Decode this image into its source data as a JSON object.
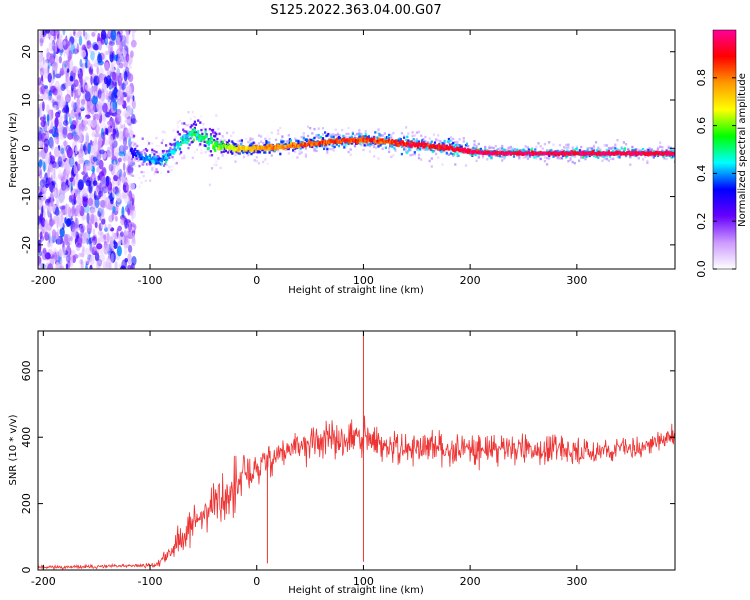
{
  "figure": {
    "title": "S125.2022.363.04.00.G07"
  },
  "chart_data": [
    {
      "type": "heatmap",
      "xlabel": "Height of straight line (km)",
      "ylabel": "Frequency (Hz)",
      "xlim": [
        -205,
        392
      ],
      "ylim": [
        -25,
        24.5
      ],
      "x_ticks": [
        -200,
        -100,
        0,
        100,
        200,
        300
      ],
      "y_ticks": [
        -20,
        -10,
        0,
        10,
        20
      ],
      "colorbar": {
        "label": "Normalized spectral amplitude",
        "range": [
          0,
          1
        ],
        "ticks": [
          0.0,
          0.2,
          0.4,
          0.6,
          0.8
        ],
        "colors": [
          "#ffffff",
          "#cc99ff",
          "#6600ff",
          "#0000ff",
          "#00ffff",
          "#00ff00",
          "#ffff00",
          "#ff9900",
          "#ff0000",
          "#ff0099"
        ]
      },
      "ridge": {
        "x": [
          -120,
          -110,
          -100,
          -90,
          -80,
          -70,
          -60,
          -50,
          -40,
          -30,
          -20,
          0,
          20,
          40,
          60,
          80,
          100,
          120,
          140,
          160,
          180,
          200,
          220,
          250,
          300,
          350,
          392
        ],
        "freq": [
          -0.5,
          -1.5,
          -2.5,
          -2.0,
          -1.0,
          1.5,
          3.0,
          2.0,
          1.0,
          0.5,
          0.0,
          0.0,
          0.3,
          0.8,
          1.2,
          1.6,
          1.8,
          1.5,
          1.0,
          0.6,
          0.1,
          -0.6,
          -0.9,
          -1.0,
          -1.0,
          -1.0,
          -1.0
        ],
        "amplitude": [
          0.3,
          0.35,
          0.4,
          0.4,
          0.4,
          0.45,
          0.5,
          0.5,
          0.55,
          0.6,
          0.7,
          0.75,
          0.8,
          0.8,
          0.85,
          0.85,
          0.85,
          0.85,
          0.9,
          0.9,
          0.9,
          0.95,
          0.95,
          0.95,
          0.95,
          0.95,
          0.95
        ]
      },
      "noise_region_x": [
        -205,
        -115
      ],
      "grid": false
    },
    {
      "type": "line",
      "xlabel": "Height of straight line (km)",
      "ylabel": "SNR (10 * v/v)",
      "xlim": [
        -205,
        392
      ],
      "ylim": [
        0,
        720
      ],
      "x_ticks": [
        -200,
        -100,
        0,
        100,
        200,
        300
      ],
      "y_ticks": [
        0,
        200,
        400,
        600
      ],
      "line_color": "#ee3333",
      "series": [
        {
          "x": [
            -205,
            -180,
            -150,
            -120,
            -95,
            -90,
            -80,
            -70,
            -60,
            -50,
            -40,
            -30,
            -20,
            -10,
            0,
            10,
            20,
            30,
            40,
            50,
            60,
            70,
            80,
            90,
            100,
            110,
            120,
            140,
            160,
            180,
            200,
            220,
            240,
            260,
            280,
            300,
            320,
            340,
            360,
            380,
            392
          ],
          "y": [
            10,
            8,
            10,
            12,
            15,
            25,
            60,
            100,
            140,
            170,
            200,
            220,
            240,
            290,
            300,
            330,
            350,
            360,
            370,
            380,
            390,
            390,
            390,
            395,
            395,
            385,
            370,
            365,
            370,
            365,
            365,
            365,
            370,
            360,
            360,
            355,
            360,
            365,
            370,
            390,
            400
          ],
          "amp": [
            6,
            6,
            6,
            6,
            8,
            15,
            30,
            50,
            60,
            70,
            80,
            90,
            100,
            90,
            70,
            60,
            50,
            50,
            50,
            55,
            55,
            55,
            60,
            70,
            70,
            60,
            55,
            50,
            50,
            50,
            50,
            50,
            45,
            45,
            45,
            40,
            35,
            35,
            35,
            35,
            35
          ]
        }
      ],
      "spikes": [
        {
          "x": 100,
          "y": 720
        },
        {
          "x": 100,
          "y": 25
        },
        {
          "x": 10,
          "y": 20
        }
      ],
      "grid": false
    }
  ]
}
